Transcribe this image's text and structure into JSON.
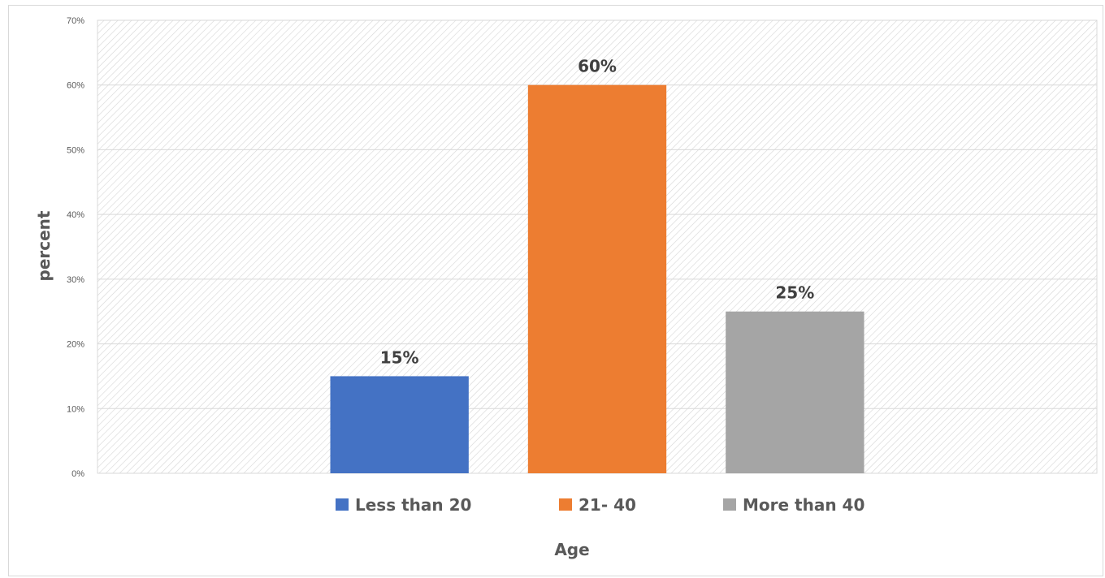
{
  "chart_data": {
    "type": "bar",
    "categories": [
      "Less than 20",
      "21- 40",
      "More than 40"
    ],
    "values": [
      15,
      60,
      25
    ],
    "data_labels": [
      "15%",
      "60%",
      "25%"
    ],
    "colors": [
      "#4472c4",
      "#ed7d31",
      "#a5a5a5"
    ],
    "title": "",
    "xlabel": "Age",
    "ylabel": "percent",
    "ylim": [
      0,
      70
    ],
    "yticks": [
      "0%",
      "10%",
      "20%",
      "30%",
      "40%",
      "50%",
      "60%",
      "70%"
    ],
    "grid": true,
    "plot_background": "hatched",
    "legend": {
      "position": "bottom",
      "entries": [
        "Less than 20",
        "21- 40",
        "More than 40"
      ]
    }
  }
}
